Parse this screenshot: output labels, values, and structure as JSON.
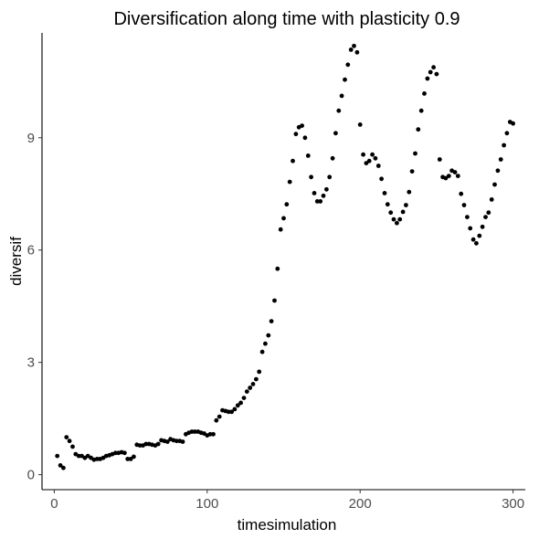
{
  "chart_data": {
    "type": "scatter",
    "title": "Diversification along time with plasticity 0.9",
    "xlabel": "timesimulation",
    "ylabel": "diversif",
    "xlim": [
      -8,
      308
    ],
    "ylim": [
      -0.4,
      11.8
    ],
    "xticks": [
      0,
      100,
      200,
      300
    ],
    "yticks": [
      0,
      3,
      6,
      9
    ],
    "grid": false,
    "legend": "none",
    "colors": {
      "point": "#000000",
      "axis": "#000000",
      "tick_label": "#4d4d4d"
    },
    "x": [
      2,
      4,
      6,
      8,
      10,
      12,
      14,
      16,
      18,
      20,
      22,
      24,
      26,
      28,
      30,
      32,
      34,
      36,
      38,
      40,
      42,
      44,
      46,
      48,
      50,
      52,
      54,
      56,
      58,
      60,
      62,
      64,
      66,
      68,
      70,
      72,
      74,
      76,
      78,
      80,
      82,
      84,
      86,
      88,
      90,
      92,
      94,
      96,
      98,
      100,
      102,
      104,
      106,
      108,
      110,
      112,
      114,
      116,
      118,
      120,
      122,
      124,
      126,
      128,
      130,
      132,
      134,
      136,
      138,
      140,
      142,
      144,
      146,
      148,
      150,
      152,
      154,
      156,
      158,
      160,
      162,
      164,
      166,
      168,
      170,
      172,
      174,
      176,
      178,
      180,
      182,
      184,
      186,
      188,
      190,
      192,
      194,
      196,
      198,
      200,
      202,
      204,
      206,
      208,
      210,
      212,
      214,
      216,
      218,
      220,
      222,
      224,
      226,
      228,
      230,
      232,
      234,
      236,
      238,
      240,
      242,
      244,
      246,
      248,
      250,
      252,
      254,
      256,
      258,
      260,
      262,
      264,
      266,
      268,
      270,
      272,
      274,
      276,
      278,
      280,
      282,
      284,
      286,
      288,
      290,
      292,
      294,
      296,
      298,
      300
    ],
    "y": [
      0.5,
      0.25,
      0.18,
      1.0,
      0.9,
      0.75,
      0.55,
      0.5,
      0.5,
      0.45,
      0.5,
      0.45,
      0.4,
      0.42,
      0.42,
      0.45,
      0.5,
      0.52,
      0.55,
      0.58,
      0.58,
      0.6,
      0.58,
      0.42,
      0.42,
      0.48,
      0.8,
      0.78,
      0.78,
      0.82,
      0.82,
      0.8,
      0.78,
      0.82,
      0.92,
      0.9,
      0.88,
      0.95,
      0.92,
      0.9,
      0.9,
      0.88,
      1.08,
      1.12,
      1.15,
      1.15,
      1.15,
      1.12,
      1.1,
      1.05,
      1.08,
      1.08,
      1.45,
      1.55,
      1.72,
      1.7,
      1.68,
      1.68,
      1.75,
      1.85,
      1.92,
      2.05,
      2.22,
      2.32,
      2.42,
      2.55,
      2.75,
      3.28,
      3.5,
      3.72,
      4.1,
      4.65,
      5.5,
      6.55,
      6.85,
      7.22,
      7.82,
      8.38,
      9.1,
      9.28,
      9.32,
      9.0,
      8.52,
      7.95,
      7.52,
      7.3,
      7.3,
      7.45,
      7.62,
      7.95,
      8.45,
      9.12,
      9.72,
      10.12,
      10.55,
      10.95,
      11.35,
      11.45,
      11.28,
      9.35,
      8.55,
      8.32,
      8.38,
      8.55,
      8.45,
      8.25,
      7.9,
      7.52,
      7.22,
      7.0,
      6.82,
      6.72,
      6.82,
      7.02,
      7.2,
      7.55,
      8.1,
      8.58,
      9.22,
      9.72,
      10.18,
      10.58,
      10.75,
      10.88,
      10.7,
      8.42,
      7.95,
      7.92,
      7.98,
      8.12,
      8.08,
      7.98,
      7.5,
      7.2,
      6.88,
      6.58,
      6.28,
      6.18,
      6.38,
      6.62,
      6.88,
      7.0,
      7.35,
      7.75,
      8.12,
      8.42,
      8.8,
      9.12,
      9.42,
      9.38
    ]
  }
}
